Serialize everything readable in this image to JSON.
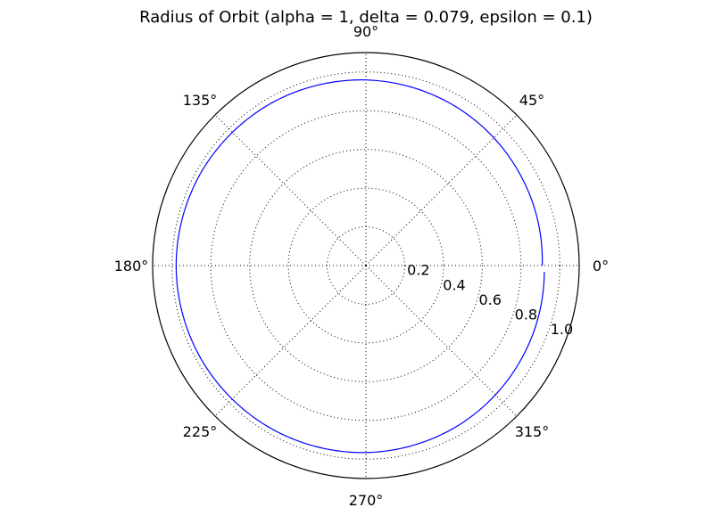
{
  "chart_data": {
    "type": "line",
    "projection": "polar",
    "title": "Radius of Orbit (alpha = 1, delta = 0.079, epsilon = 0.1)",
    "theta_tick_labels": [
      "0°",
      "45°",
      "90°",
      "135°",
      "180°",
      "225°",
      "270°",
      "315°"
    ],
    "theta_ticks_deg": [
      0,
      45,
      90,
      135,
      180,
      225,
      270,
      315
    ],
    "r_ticks": [
      0.2,
      0.4,
      0.6,
      0.8,
      1.0
    ],
    "r_tick_labels": [
      "0.2",
      "0.4",
      "0.6",
      "0.8",
      "1.0"
    ],
    "rlim": [
      0,
      1.1
    ],
    "grid": true,
    "series": [
      {
        "color": "#0000ff",
        "theta_deg": [
          0,
          30,
          60,
          90,
          120,
          150,
          180,
          210,
          240,
          270,
          300,
          330,
          358
        ],
        "r": [
          0.9091,
          0.9235,
          0.9422,
          0.9587,
          0.9704,
          0.9767,
          0.9787,
          0.9774,
          0.9734,
          0.966,
          0.9535,
          0.9349,
          0.9203
        ]
      }
    ]
  },
  "colors": {
    "orbit_line": "#0000ff",
    "frame": "#000000",
    "background": "#ffffff"
  }
}
